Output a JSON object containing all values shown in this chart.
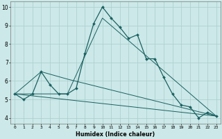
{
  "xlabel": "Humidex (Indice chaleur)",
  "bg_color": "#cce8e8",
  "grid_color": "#aacccc",
  "line_color": "#1a6060",
  "xlim": [
    -0.5,
    23.5
  ],
  "ylim": [
    3.7,
    10.3
  ],
  "xtick_vals": [
    0,
    1,
    2,
    3,
    4,
    5,
    6,
    7,
    8,
    9,
    10,
    11,
    12,
    13,
    14,
    15,
    16,
    17,
    18,
    19,
    20,
    21,
    22,
    23
  ],
  "ytick_vals": [
    4,
    5,
    6,
    7,
    8,
    9,
    10
  ],
  "series_main": {
    "x": [
      0,
      1,
      2,
      3,
      4,
      5,
      6,
      7,
      8,
      9,
      10,
      11,
      12,
      13,
      14,
      15,
      16,
      17,
      18,
      19,
      20,
      21,
      22,
      23
    ],
    "y": [
      5.3,
      5.0,
      5.3,
      6.5,
      5.8,
      5.3,
      5.3,
      5.6,
      7.5,
      9.1,
      10.0,
      9.4,
      8.9,
      8.3,
      8.5,
      7.2,
      7.2,
      6.2,
      5.3,
      4.7,
      4.6,
      4.0,
      4.3,
      4.1
    ]
  },
  "series_line1": {
    "x": [
      0,
      3,
      6,
      23
    ],
    "y": [
      5.3,
      6.5,
      6.1,
      4.1
    ]
  },
  "series_line2": {
    "x": [
      0,
      23
    ],
    "y": [
      5.3,
      4.1
    ]
  },
  "series_line3": {
    "x": [
      0,
      6,
      10,
      23
    ],
    "y": [
      5.3,
      5.3,
      9.4,
      4.1
    ]
  }
}
